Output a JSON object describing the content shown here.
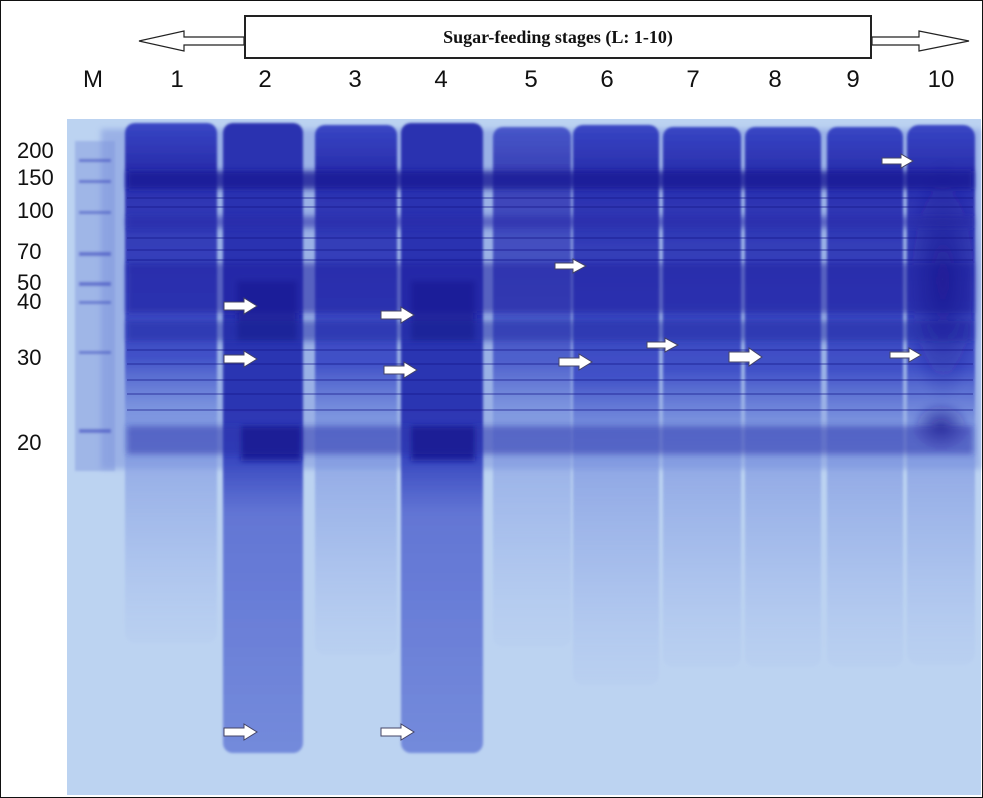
{
  "header": {
    "title": "Sugar-feeding stages (L: 1-10)"
  },
  "lanes": [
    "M",
    "1",
    "2",
    "3",
    "4",
    "5",
    "6",
    "7",
    "8",
    "9",
    "10"
  ],
  "marker_kda": [
    "200",
    "150",
    "100",
    "70",
    "50",
    "40",
    "30",
    "20"
  ],
  "colors": {
    "gel_light": "#bcd3f1",
    "stain_mid": "#4a5cd0",
    "stain_dark": "#1d1f9e",
    "arrow_fill": "#ffffff"
  },
  "icons": [
    "left-arrow-icon",
    "right-arrow-icon",
    "band-arrow-icon"
  ]
}
